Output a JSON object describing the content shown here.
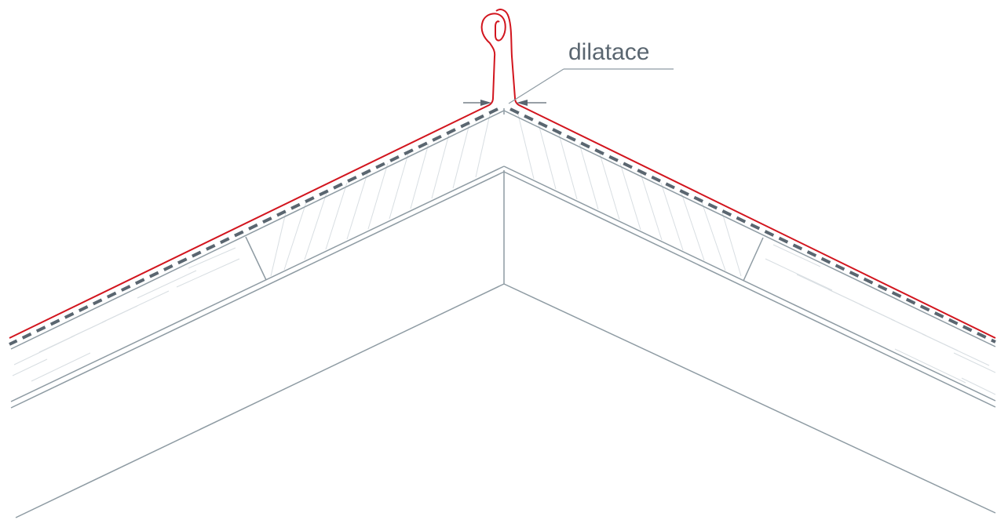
{
  "annotation": {
    "label": "dilatace"
  },
  "colors": {
    "background": "#ffffff",
    "structure_line": "#8e9ba3",
    "insulation_hatch": "#d8dee2",
    "membrane_dash": "#5a6670",
    "sheet_metal": "#d2151e",
    "leader_line": "#8e9ba3",
    "label_text": "#5a6670"
  }
}
